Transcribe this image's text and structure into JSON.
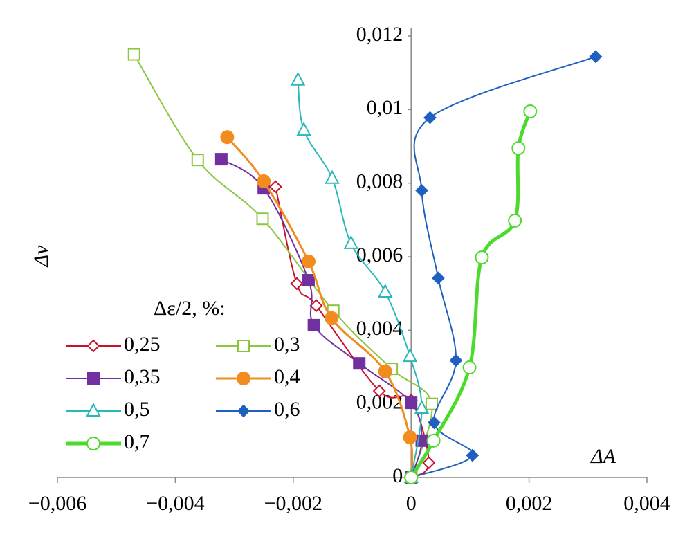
{
  "chart_data": {
    "type": "line",
    "x_label": "ΔA",
    "y_label": "Δv",
    "legend_title": "Δε/2, %:",
    "xlim": [
      -0.006,
      0.004
    ],
    "xticks": [
      {
        "value": -0.006,
        "label": "−0,006"
      },
      {
        "value": -0.004,
        "label": "−0,004"
      },
      {
        "value": -0.002,
        "label": "−0,002"
      },
      0,
      {
        "value": 0.002,
        "label": "0,002"
      },
      {
        "value": 0.004,
        "label": "0,004"
      }
    ],
    "ylim": [
      0,
      0.012
    ],
    "yticks": [
      0,
      {
        "value": 0.002,
        "label": "0,002"
      },
      {
        "value": 0.004,
        "label": "0,004"
      },
      {
        "value": 0.006,
        "label": "0,006"
      },
      {
        "value": 0.008,
        "label": "0,008"
      },
      {
        "value": 0.01,
        "label": "0,01"
      },
      {
        "value": 0.012,
        "label": "0,012"
      }
    ],
    "series": [
      {
        "name": "0,25",
        "color": "#c8102e",
        "marker": "diamond",
        "filled": false,
        "line_width": 2,
        "x": [
          -0.0023,
          -0.00194,
          -0.00161,
          -0.00054,
          0.0,
          0.0003,
          0
        ],
        "values": [
          0.0079,
          0.00527,
          0.00467,
          0.00235,
          0.0021,
          0.0004,
          0
        ]
      },
      {
        "name": "0,3",
        "color": "#8cc63f",
        "marker": "square",
        "filled": false,
        "line_width": 2,
        "x": [
          -0.0047,
          -0.00362,
          -0.00252,
          -0.00132,
          -0.00033,
          0.00035,
          0
        ],
        "values": [
          0.0115,
          0.00863,
          0.00703,
          0.00453,
          0.00295,
          0.002,
          0
        ]
      },
      {
        "name": "0,35",
        "color": "#7030a0",
        "marker": "square",
        "filled": true,
        "line_width": 2,
        "x": [
          -0.00322,
          -0.0025,
          -0.00174,
          -0.00165,
          -0.00088,
          0.0,
          0.00018,
          0
        ],
        "values": [
          0.00865,
          0.00786,
          0.00536,
          0.00414,
          0.0031,
          0.00203,
          0.001,
          0
        ]
      },
      {
        "name": "0,4",
        "color": "#f28c1e",
        "marker": "circle",
        "filled": true,
        "line_width": 3,
        "x": [
          -0.00312,
          -0.0025,
          -0.00174,
          -0.00135,
          -0.00044,
          -2e-05,
          0
        ],
        "values": [
          0.00925,
          0.00805,
          0.00587,
          0.00433,
          0.00288,
          0.00109,
          0
        ]
      },
      {
        "name": "0,5",
        "color": "#2ab7b7",
        "marker": "triangle",
        "filled": false,
        "line_width": 2,
        "x": [
          -0.00192,
          -0.00182,
          -0.00134,
          -0.00102,
          -0.00044,
          -2e-05,
          0.00018,
          0
        ],
        "values": [
          0.0108,
          0.00944,
          0.00813,
          0.00636,
          0.00504,
          0.00329,
          0.00188,
          0
        ]
      },
      {
        "name": "0,6",
        "color": "#1f5fbf",
        "marker": "diamond",
        "filled": true,
        "line_width": 2,
        "x": [
          0.00313,
          0.00032,
          0.00018,
          0.00046,
          0.00076,
          0.00039,
          0.00104,
          0
        ],
        "values": [
          0.01144,
          0.00978,
          0.0078,
          0.00542,
          0.00318,
          0.00149,
          0.0006,
          0
        ]
      },
      {
        "name": "0,7",
        "color": "#4cdb2c",
        "marker": "circle",
        "filled": false,
        "line_width": 5,
        "x": [
          0.00202,
          0.00182,
          0.00176,
          0.0012,
          0.00099,
          0.00038,
          0
        ],
        "values": [
          0.00995,
          0.00895,
          0.00698,
          0.00598,
          0.00299,
          0.001,
          0
        ]
      }
    ]
  }
}
